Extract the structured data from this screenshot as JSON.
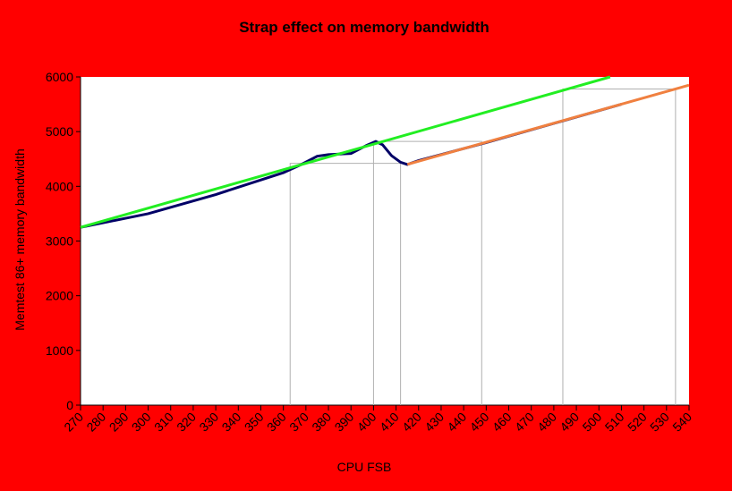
{
  "chart_data": {
    "type": "line",
    "title": "Strap effect on memory bandwidth",
    "xlabel": "CPU FSB",
    "ylabel": "Memtest 86+ memory bandwidth",
    "xlim": [
      270,
      540
    ],
    "xticks": [
      270,
      280,
      290,
      300,
      310,
      320,
      330,
      340,
      350,
      360,
      370,
      380,
      390,
      400,
      410,
      420,
      430,
      440,
      450,
      460,
      470,
      480,
      490,
      500,
      510,
      520,
      530,
      540
    ],
    "ylim": [
      0,
      6000
    ],
    "yticks": [
      0,
      1000,
      2000,
      3000,
      4000,
      5000,
      6000
    ],
    "grid": false,
    "series": [
      {
        "color": "#000066",
        "x": [
          270,
          300,
          330,
          360,
          368,
          375,
          380,
          390,
          397,
          401,
          404,
          408,
          412,
          415,
          420,
          450,
          480,
          510
        ],
        "values": [
          3250,
          3500,
          3850,
          4250,
          4400,
          4550,
          4580,
          4600,
          4750,
          4820,
          4760,
          4560,
          4440,
          4400,
          4470,
          4800,
          5150,
          5500
        ]
      },
      {
        "color": "#22ee22",
        "x": [
          270,
          505
        ],
        "values": [
          3250,
          6000
        ]
      },
      {
        "color": "#f08040",
        "x": [
          415,
          540
        ],
        "values": [
          4400,
          5850
        ]
      }
    ],
    "guide_color": "#b0b0b0",
    "guides": [
      {
        "x": [
          363,
          363,
          412,
          412
        ],
        "values": [
          0,
          4420,
          4420,
          0
        ]
      },
      {
        "x": [
          400,
          400,
          448,
          448
        ],
        "values": [
          0,
          4820,
          4820,
          0
        ]
      },
      {
        "x": [
          484,
          484,
          534,
          534
        ],
        "values": [
          0,
          5780,
          5780,
          0
        ]
      }
    ]
  }
}
